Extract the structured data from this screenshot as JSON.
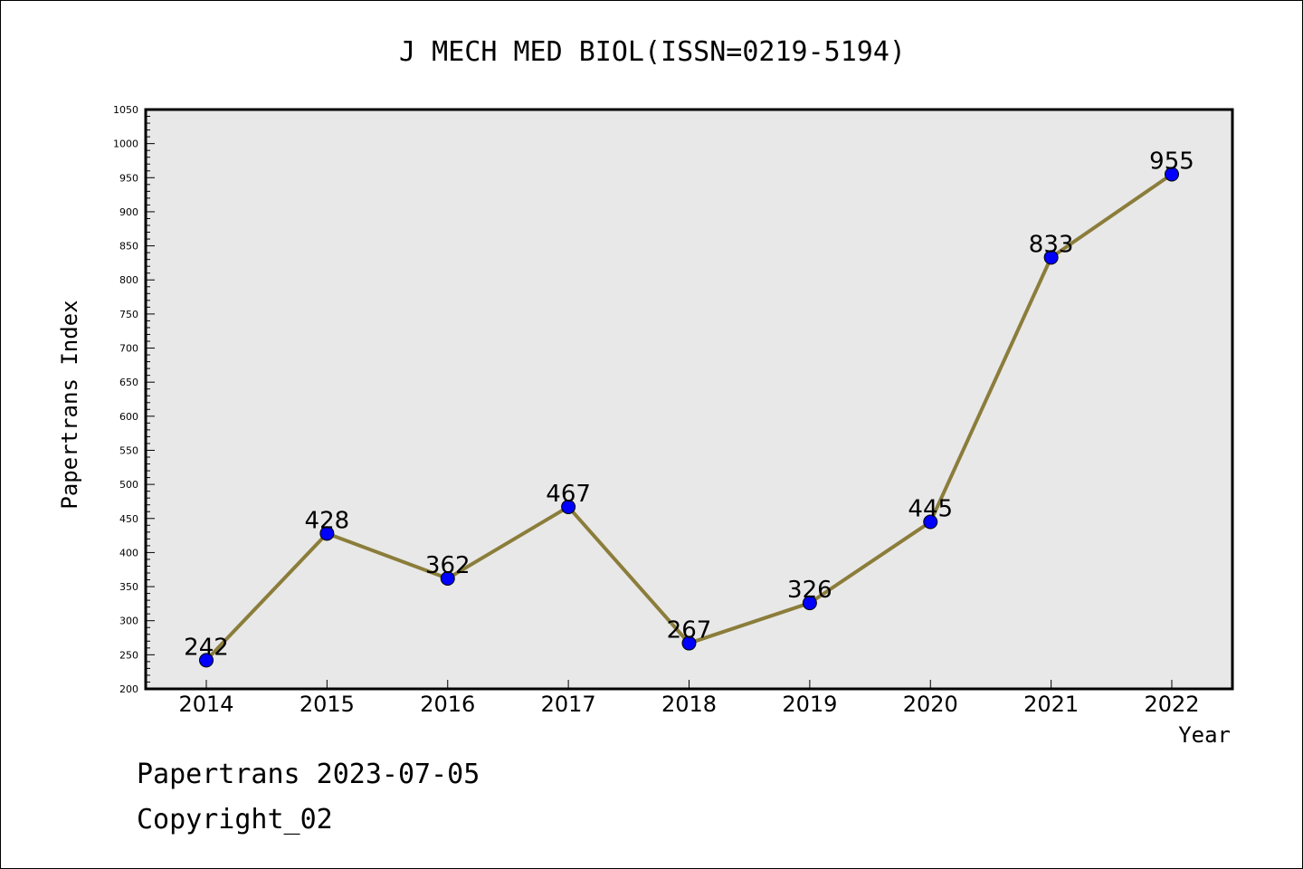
{
  "chart_data": {
    "type": "line",
    "title": "J MECH MED BIOL(ISSN=0219-5194)",
    "xlabel": "Year",
    "ylabel": "Papertrans Index",
    "categories": [
      "2014",
      "2015",
      "2016",
      "2017",
      "2018",
      "2019",
      "2020",
      "2021",
      "2022"
    ],
    "series": [
      {
        "values": [
          242,
          428,
          362,
          467,
          267,
          326,
          445,
          833,
          955
        ]
      }
    ],
    "ylim": [
      200,
      1050
    ],
    "yticks": [
      200,
      250,
      300,
      350,
      400,
      450,
      500,
      550,
      600,
      650,
      700,
      750,
      800,
      850,
      900,
      950,
      1000,
      1050
    ],
    "yticks_text": [
      "200",
      "250",
      "300",
      "350",
      "400",
      "450",
      "500",
      "550",
      "600",
      "650",
      "700",
      "750",
      "800",
      "850",
      "900",
      "950",
      "1000",
      "1050"
    ],
    "grid": false,
    "line_color": "#8B7D3A",
    "marker_color": "#0000FF",
    "plot_background": "#E8E8E8"
  },
  "footer": {
    "line1": "Papertrans 2023-07-05",
    "line2": "Copyright_02"
  }
}
